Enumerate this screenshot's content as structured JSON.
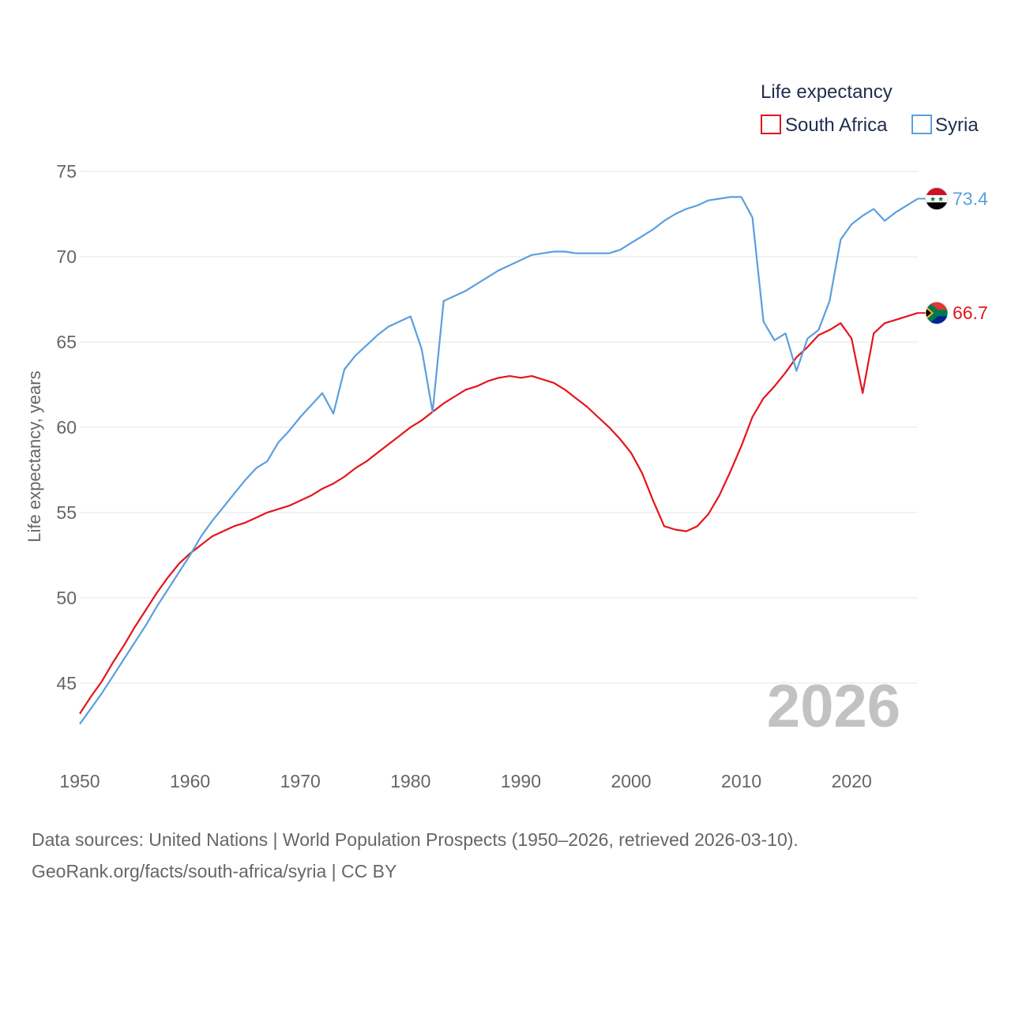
{
  "chart_data": {
    "type": "line",
    "legend_title": "Life expectancy",
    "ylabel": "Life expectancy, years",
    "xlabel": "",
    "ylim": [
      40.5,
      75
    ],
    "xlim": [
      1950,
      2026
    ],
    "yticks": [
      45,
      50,
      55,
      60,
      65,
      70,
      75
    ],
    "xticks": [
      1950,
      1960,
      1970,
      1980,
      1990,
      2000,
      2010,
      2020
    ],
    "year_label": "2026",
    "grid": true,
    "legend_position": "top-right",
    "series": [
      {
        "name": "South Africa",
        "color": "#e3161b",
        "end_label": "66.7",
        "flag": "south-africa-flag-icon",
        "points": [
          [
            1950,
            43.2
          ],
          [
            1951,
            44.2
          ],
          [
            1952,
            45.1
          ],
          [
            1953,
            46.2
          ],
          [
            1954,
            47.2
          ],
          [
            1955,
            48.3
          ],
          [
            1956,
            49.3
          ],
          [
            1957,
            50.3
          ],
          [
            1958,
            51.2
          ],
          [
            1959,
            52.0
          ],
          [
            1960,
            52.6
          ],
          [
            1961,
            53.1
          ],
          [
            1962,
            53.6
          ],
          [
            1963,
            53.9
          ],
          [
            1964,
            54.2
          ],
          [
            1965,
            54.4
          ],
          [
            1966,
            54.7
          ],
          [
            1967,
            55.0
          ],
          [
            1968,
            55.2
          ],
          [
            1969,
            55.4
          ],
          [
            1970,
            55.7
          ],
          [
            1971,
            56.0
          ],
          [
            1972,
            56.4
          ],
          [
            1973,
            56.7
          ],
          [
            1974,
            57.1
          ],
          [
            1975,
            57.6
          ],
          [
            1976,
            58.0
          ],
          [
            1977,
            58.5
          ],
          [
            1978,
            59.0
          ],
          [
            1979,
            59.5
          ],
          [
            1980,
            60.0
          ],
          [
            1981,
            60.4
          ],
          [
            1982,
            60.9
          ],
          [
            1983,
            61.4
          ],
          [
            1984,
            61.8
          ],
          [
            1985,
            62.2
          ],
          [
            1986,
            62.4
          ],
          [
            1987,
            62.7
          ],
          [
            1988,
            62.9
          ],
          [
            1989,
            63.0
          ],
          [
            1990,
            62.9
          ],
          [
            1991,
            63.0
          ],
          [
            1992,
            62.8
          ],
          [
            1993,
            62.6
          ],
          [
            1994,
            62.2
          ],
          [
            1995,
            61.7
          ],
          [
            1996,
            61.2
          ],
          [
            1997,
            60.6
          ],
          [
            1998,
            60.0
          ],
          [
            1999,
            59.3
          ],
          [
            2000,
            58.5
          ],
          [
            2001,
            57.3
          ],
          [
            2002,
            55.7
          ],
          [
            2003,
            54.2
          ],
          [
            2004,
            54.0
          ],
          [
            2005,
            53.9
          ],
          [
            2006,
            54.2
          ],
          [
            2007,
            54.9
          ],
          [
            2008,
            56.0
          ],
          [
            2009,
            57.4
          ],
          [
            2010,
            58.9
          ],
          [
            2011,
            60.6
          ],
          [
            2012,
            61.7
          ],
          [
            2013,
            62.4
          ],
          [
            2014,
            63.2
          ],
          [
            2015,
            64.1
          ],
          [
            2016,
            64.7
          ],
          [
            2017,
            65.4
          ],
          [
            2018,
            65.7
          ],
          [
            2019,
            66.1
          ],
          [
            2020,
            65.2
          ],
          [
            2021,
            62.0
          ],
          [
            2022,
            65.5
          ],
          [
            2023,
            66.1
          ],
          [
            2024,
            66.3
          ],
          [
            2025,
            66.5
          ],
          [
            2026,
            66.7
          ]
        ]
      },
      {
        "name": "Syria",
        "color": "#5b9fdf",
        "end_label": "73.4",
        "flag": "syria-flag-icon",
        "points": [
          [
            1950,
            42.6
          ],
          [
            1951,
            43.5
          ],
          [
            1952,
            44.4
          ],
          [
            1953,
            45.4
          ],
          [
            1954,
            46.4
          ],
          [
            1955,
            47.4
          ],
          [
            1956,
            48.4
          ],
          [
            1957,
            49.5
          ],
          [
            1958,
            50.5
          ],
          [
            1959,
            51.5
          ],
          [
            1960,
            52.5
          ],
          [
            1961,
            53.6
          ],
          [
            1962,
            54.5
          ],
          [
            1963,
            55.3
          ],
          [
            1964,
            56.1
          ],
          [
            1965,
            56.9
          ],
          [
            1966,
            57.6
          ],
          [
            1967,
            58.0
          ],
          [
            1968,
            59.1
          ],
          [
            1969,
            59.8
          ],
          [
            1970,
            60.6
          ],
          [
            1971,
            61.3
          ],
          [
            1972,
            62.0
          ],
          [
            1973,
            60.8
          ],
          [
            1974,
            63.4
          ],
          [
            1975,
            64.2
          ],
          [
            1976,
            64.8
          ],
          [
            1977,
            65.4
          ],
          [
            1978,
            65.9
          ],
          [
            1979,
            66.2
          ],
          [
            1980,
            66.5
          ],
          [
            1981,
            64.6
          ],
          [
            1982,
            60.9
          ],
          [
            1983,
            67.4
          ],
          [
            1984,
            67.7
          ],
          [
            1985,
            68.0
          ],
          [
            1986,
            68.4
          ],
          [
            1987,
            68.8
          ],
          [
            1988,
            69.2
          ],
          [
            1989,
            69.5
          ],
          [
            1990,
            69.8
          ],
          [
            1991,
            70.1
          ],
          [
            1992,
            70.2
          ],
          [
            1993,
            70.3
          ],
          [
            1994,
            70.3
          ],
          [
            1995,
            70.2
          ],
          [
            1996,
            70.2
          ],
          [
            1997,
            70.2
          ],
          [
            1998,
            70.2
          ],
          [
            1999,
            70.4
          ],
          [
            2000,
            70.8
          ],
          [
            2001,
            71.2
          ],
          [
            2002,
            71.6
          ],
          [
            2003,
            72.1
          ],
          [
            2004,
            72.5
          ],
          [
            2005,
            72.8
          ],
          [
            2006,
            73.0
          ],
          [
            2007,
            73.3
          ],
          [
            2008,
            73.4
          ],
          [
            2009,
            73.5
          ],
          [
            2010,
            73.5
          ],
          [
            2011,
            72.3
          ],
          [
            2012,
            66.2
          ],
          [
            2013,
            65.1
          ],
          [
            2014,
            65.5
          ],
          [
            2015,
            63.3
          ],
          [
            2016,
            65.2
          ],
          [
            2017,
            65.7
          ],
          [
            2018,
            67.4
          ],
          [
            2019,
            71.0
          ],
          [
            2020,
            71.9
          ],
          [
            2021,
            72.4
          ],
          [
            2022,
            72.8
          ],
          [
            2023,
            72.1
          ],
          [
            2024,
            72.6
          ],
          [
            2025,
            73.0
          ],
          [
            2026,
            73.4
          ]
        ]
      }
    ]
  },
  "footer": {
    "line1": "Data sources: United Nations | World Population Prospects (1950–2026, retrieved 2026-03-10).",
    "line2": "GeoRank.org/facts/south-africa/syria | CC BY"
  }
}
